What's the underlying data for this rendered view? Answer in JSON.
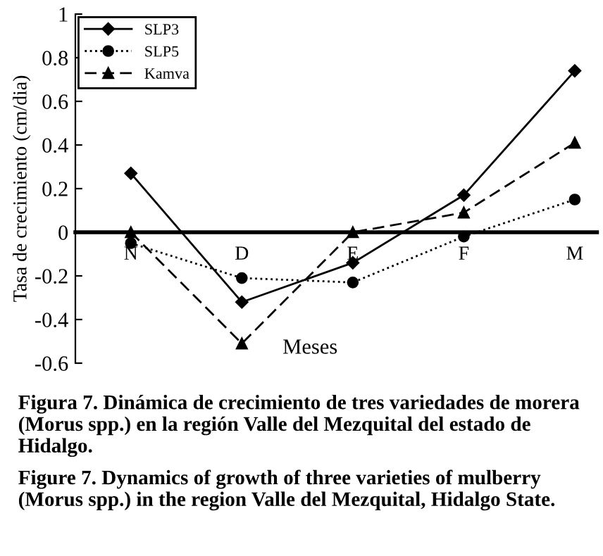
{
  "chart_data": {
    "type": "line",
    "xlabel": "Meses",
    "ylabel": "Tasa de crecimiento (cm/dia)",
    "categories": [
      "N",
      "D",
      "E",
      "F",
      "M"
    ],
    "series": [
      {
        "name": "SLP3",
        "color": "#000000",
        "marker": "diamond",
        "line_style": "solid",
        "values": [
          0.27,
          -0.32,
          -0.14,
          0.17,
          0.74
        ]
      },
      {
        "name": "SLP5",
        "color": "#000000",
        "marker": "circle",
        "line_style": "dotted",
        "values": [
          -0.05,
          -0.21,
          -0.23,
          -0.02,
          0.15
        ]
      },
      {
        "name": "Kamva",
        "color": "#000000",
        "marker": "triangle",
        "line_style": "dashed",
        "values": [
          0.0,
          -0.51,
          0.0,
          0.09,
          0.41
        ]
      }
    ],
    "ylim": [
      -0.6,
      1
    ],
    "yticks": [
      -0.6,
      -0.4,
      -0.2,
      0,
      0.2,
      0.4,
      0.6,
      0.8,
      1
    ],
    "grid": false,
    "legend": "top left",
    "annotations": [
      "Figura 7. Dinámica de crecimiento de tres variedades de morera (Morus spp.) en la región Valle del Mezquital del estado de Hidalgo.",
      "Figure 7. Dynamics of growth of three varieties of mulberry (Morus spp.) in the region Valle del Mezquital, Hidalgo State."
    ]
  }
}
